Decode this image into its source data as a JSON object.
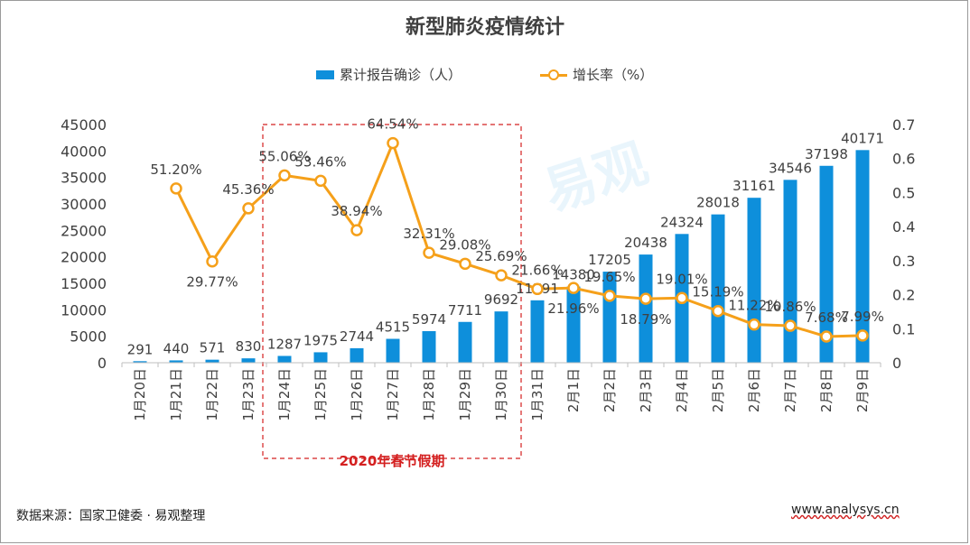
{
  "watermark": "易观",
  "footer": {
    "source": "数据来源：国家卫健委 · 易观整理",
    "url": "www.analysys.cn"
  },
  "chart_data": {
    "type": "bar",
    "title": "新型肺炎疫情统计",
    "legend_position": "top",
    "grid": false,
    "categories": [
      "1月20日",
      "1月21日",
      "1月22日",
      "1月23日",
      "1月24日",
      "1月25日",
      "1月26日",
      "1月27日",
      "1月28日",
      "1月29日",
      "1月30日",
      "1月31日",
      "2月1日",
      "2月2日",
      "2月3日",
      "2月4日",
      "2月5日",
      "2月6日",
      "2月7日",
      "2月8日",
      "2月9日"
    ],
    "series": [
      {
        "name": "累计报告确诊（人）",
        "type": "bar",
        "axis": "left",
        "color": "#0e8fdb",
        "values": [
          291,
          440,
          571,
          830,
          1287,
          1975,
          2744,
          4515,
          5974,
          7711,
          9692,
          11791,
          14380,
          17205,
          20438,
          24324,
          28018,
          31161,
          34546,
          37198,
          40171
        ],
        "labels": [
          "291",
          "440",
          "571",
          "830",
          "1287",
          "1975",
          "2744",
          "4515",
          "5974",
          "7711",
          "9692",
          "11791",
          "14380",
          "17205",
          "20438",
          "24324",
          "28018",
          "31161",
          "34546",
          "37198",
          "40171"
        ]
      },
      {
        "name": "增长率（%）",
        "type": "line",
        "axis": "right",
        "color": "#f5a01a",
        "values": [
          null,
          0.512,
          0.2977,
          0.4536,
          0.5506,
          0.5346,
          0.3894,
          0.6454,
          0.3231,
          0.2908,
          0.2569,
          0.2166,
          0.2196,
          0.1965,
          0.1879,
          0.1901,
          0.1519,
          0.1122,
          0.1086,
          0.0768,
          0.0799
        ],
        "labels": [
          null,
          "51.20%",
          "29.77%",
          "45.36%",
          "55.06%",
          "53.46%",
          "38.94%",
          "64.54%",
          "32.31%",
          "29.08%",
          "25.69%",
          "21.66%",
          "21.96%",
          "19.65%",
          "18.79%",
          "19.01%",
          "15.19%",
          "11.22%",
          "10.86%",
          "7.68%",
          "7.99%"
        ]
      }
    ],
    "y_left": {
      "min": 0,
      "max": 45000,
      "ticks": [
        "0",
        "5000",
        "10000",
        "15000",
        "20000",
        "25000",
        "30000",
        "35000",
        "40000",
        "45000"
      ]
    },
    "y_right": {
      "min": 0,
      "max": 0.7,
      "ticks": [
        "0",
        "0.1",
        "0.2",
        "0.3",
        "0.4",
        "0.5",
        "0.6",
        "0.7"
      ]
    },
    "annotation": {
      "text": "2020年春节假期",
      "start_index": 4,
      "end_index": 10,
      "color": "#d42020"
    }
  }
}
